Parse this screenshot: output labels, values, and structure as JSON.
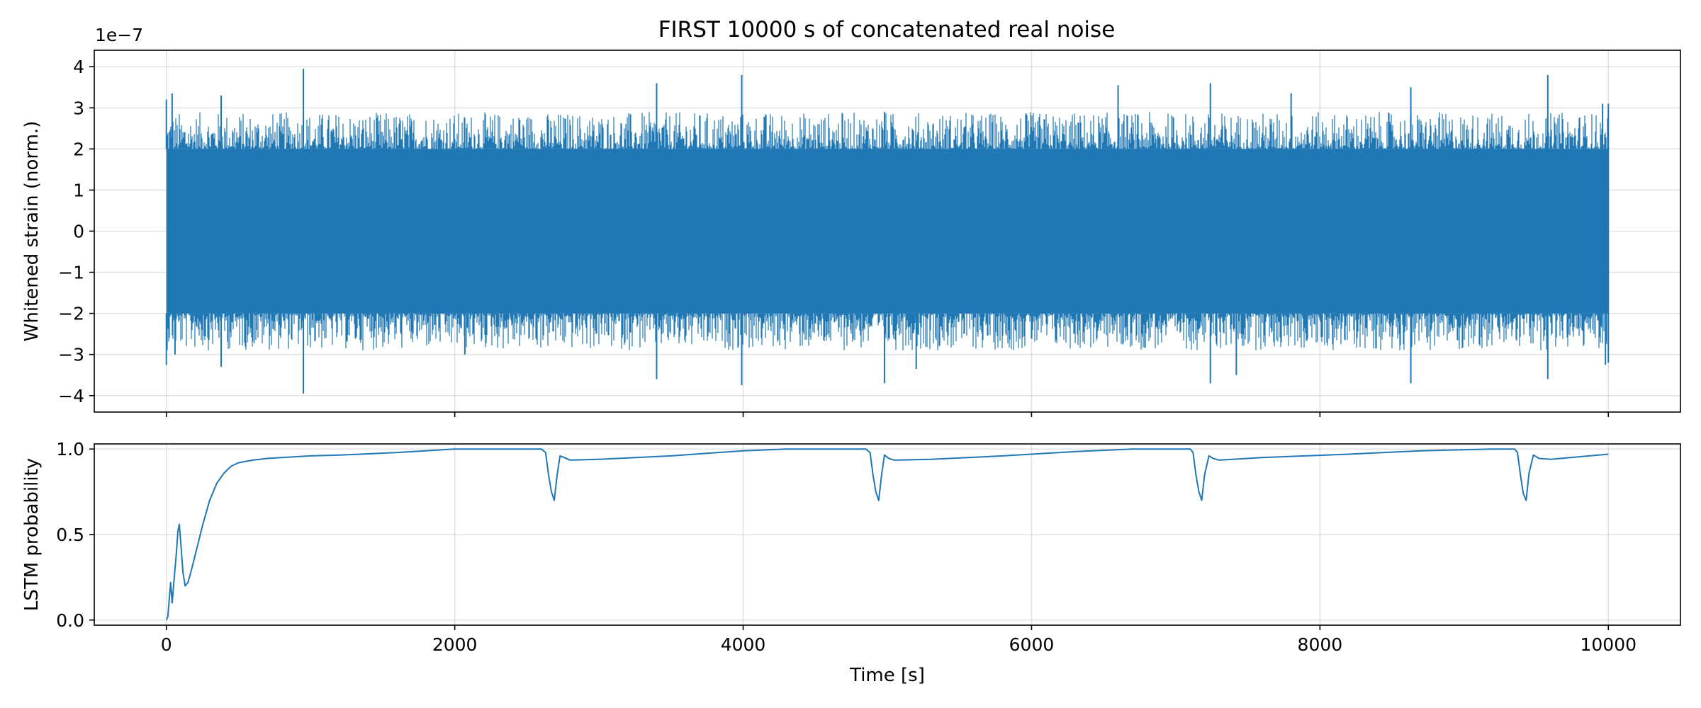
{
  "figure": {
    "title": "FIRST 10000 s of concatenated real noise"
  },
  "chart_data": [
    {
      "type": "line",
      "name": "whitened-strain",
      "title": "FIRST 10000 s of concatenated real noise",
      "xlabel": "",
      "ylabel": "Whitened strain (norm.)",
      "offset_label": "1e−7",
      "xlim": [
        -500,
        10500
      ],
      "ylim": [
        -4.4,
        4.4
      ],
      "xticks": [
        0,
        2000,
        4000,
        6000,
        8000,
        10000
      ],
      "yticks": [
        -4,
        -3,
        -2,
        -1,
        0,
        1,
        2,
        3,
        4
      ],
      "ytick_labels": [
        "−4",
        "−3",
        "−2",
        "−1",
        "0",
        "1",
        "2",
        "3",
        "4"
      ],
      "grid": true,
      "color": "#1f77b4",
      "series": [
        {
          "name": "strain",
          "x_range": [
            0,
            10000
          ],
          "band_upper": 2.0,
          "band_lower": -2.0,
          "spikes": [
            {
              "x": 0,
              "y": 3.2
            },
            {
              "x": 0,
              "y": -3.25
            },
            {
              "x": 40,
              "y": 3.35
            },
            {
              "x": 60,
              "y": -3.0
            },
            {
              "x": 380,
              "y": 3.3
            },
            {
              "x": 380,
              "y": -3.3
            },
            {
              "x": 950,
              "y": 3.95
            },
            {
              "x": 950,
              "y": -3.95
            },
            {
              "x": 2070,
              "y": -3.0
            },
            {
              "x": 2450,
              "y": 2.7
            },
            {
              "x": 3400,
              "y": 3.6
            },
            {
              "x": 3400,
              "y": -3.6
            },
            {
              "x": 3990,
              "y": 3.8
            },
            {
              "x": 3990,
              "y": -3.75
            },
            {
              "x": 4980,
              "y": 2.9
            },
            {
              "x": 4980,
              "y": -3.7
            },
            {
              "x": 5200,
              "y": -3.35
            },
            {
              "x": 6600,
              "y": 3.55
            },
            {
              "x": 7240,
              "y": 3.6
            },
            {
              "x": 7240,
              "y": -3.7
            },
            {
              "x": 7420,
              "y": -3.5
            },
            {
              "x": 7800,
              "y": 3.35
            },
            {
              "x": 8630,
              "y": 3.5
            },
            {
              "x": 8630,
              "y": -3.7
            },
            {
              "x": 9580,
              "y": 3.8
            },
            {
              "x": 9580,
              "y": -3.6
            },
            {
              "x": 9960,
              "y": 3.1
            },
            {
              "x": 9980,
              "y": -3.25
            }
          ]
        }
      ]
    },
    {
      "type": "line",
      "name": "lstm-probability",
      "title": "",
      "xlabel": "Time [s]",
      "ylabel": "LSTM probability",
      "xlim": [
        -500,
        10500
      ],
      "ylim": [
        -0.03,
        1.03
      ],
      "xticks": [
        0,
        2000,
        4000,
        6000,
        8000,
        10000
      ],
      "xtick_labels": [
        "0",
        "2000",
        "4000",
        "6000",
        "8000",
        "10000"
      ],
      "yticks": [
        0.0,
        0.5,
        1.0
      ],
      "ytick_labels": [
        "0.0",
        "0.5",
        "1.0"
      ],
      "grid": true,
      "color": "#1f77b4",
      "series": [
        {
          "name": "probability",
          "x": [
            0,
            10,
            20,
            30,
            40,
            50,
            60,
            70,
            80,
            90,
            100,
            115,
            130,
            150,
            170,
            200,
            250,
            300,
            350,
            400,
            450,
            500,
            600,
            700,
            800,
            1000,
            1200,
            1400,
            1600,
            1800,
            2000,
            2300,
            2600,
            2630,
            2650,
            2670,
            2690,
            2710,
            2730,
            2760,
            2800,
            3000,
            3500,
            4000,
            4300,
            4850,
            4880,
            4900,
            4920,
            4940,
            4960,
            4980,
            5010,
            5050,
            5300,
            5800,
            6300,
            6700,
            7100,
            7120,
            7140,
            7160,
            7180,
            7200,
            7230,
            7260,
            7300,
            7600,
            8200,
            8700,
            9200,
            9350,
            9370,
            9390,
            9410,
            9430,
            9450,
            9480,
            9520,
            9600,
            9800,
            10000
          ],
          "y": [
            0.0,
            0.02,
            0.12,
            0.22,
            0.1,
            0.2,
            0.3,
            0.4,
            0.52,
            0.56,
            0.45,
            0.28,
            0.2,
            0.22,
            0.28,
            0.38,
            0.55,
            0.7,
            0.8,
            0.86,
            0.9,
            0.92,
            0.935,
            0.945,
            0.95,
            0.96,
            0.965,
            0.972,
            0.98,
            0.99,
            1.0,
            1.0,
            1.0,
            0.98,
            0.85,
            0.75,
            0.7,
            0.85,
            0.96,
            0.95,
            0.935,
            0.94,
            0.96,
            0.99,
            1.0,
            1.0,
            0.98,
            0.85,
            0.75,
            0.7,
            0.85,
            0.965,
            0.945,
            0.935,
            0.94,
            0.96,
            0.985,
            1.0,
            1.0,
            0.98,
            0.85,
            0.75,
            0.7,
            0.85,
            0.96,
            0.945,
            0.935,
            0.95,
            0.97,
            0.99,
            1.0,
            1.0,
            0.98,
            0.85,
            0.74,
            0.7,
            0.86,
            0.965,
            0.945,
            0.94,
            0.955,
            0.97
          ]
        }
      ]
    }
  ]
}
